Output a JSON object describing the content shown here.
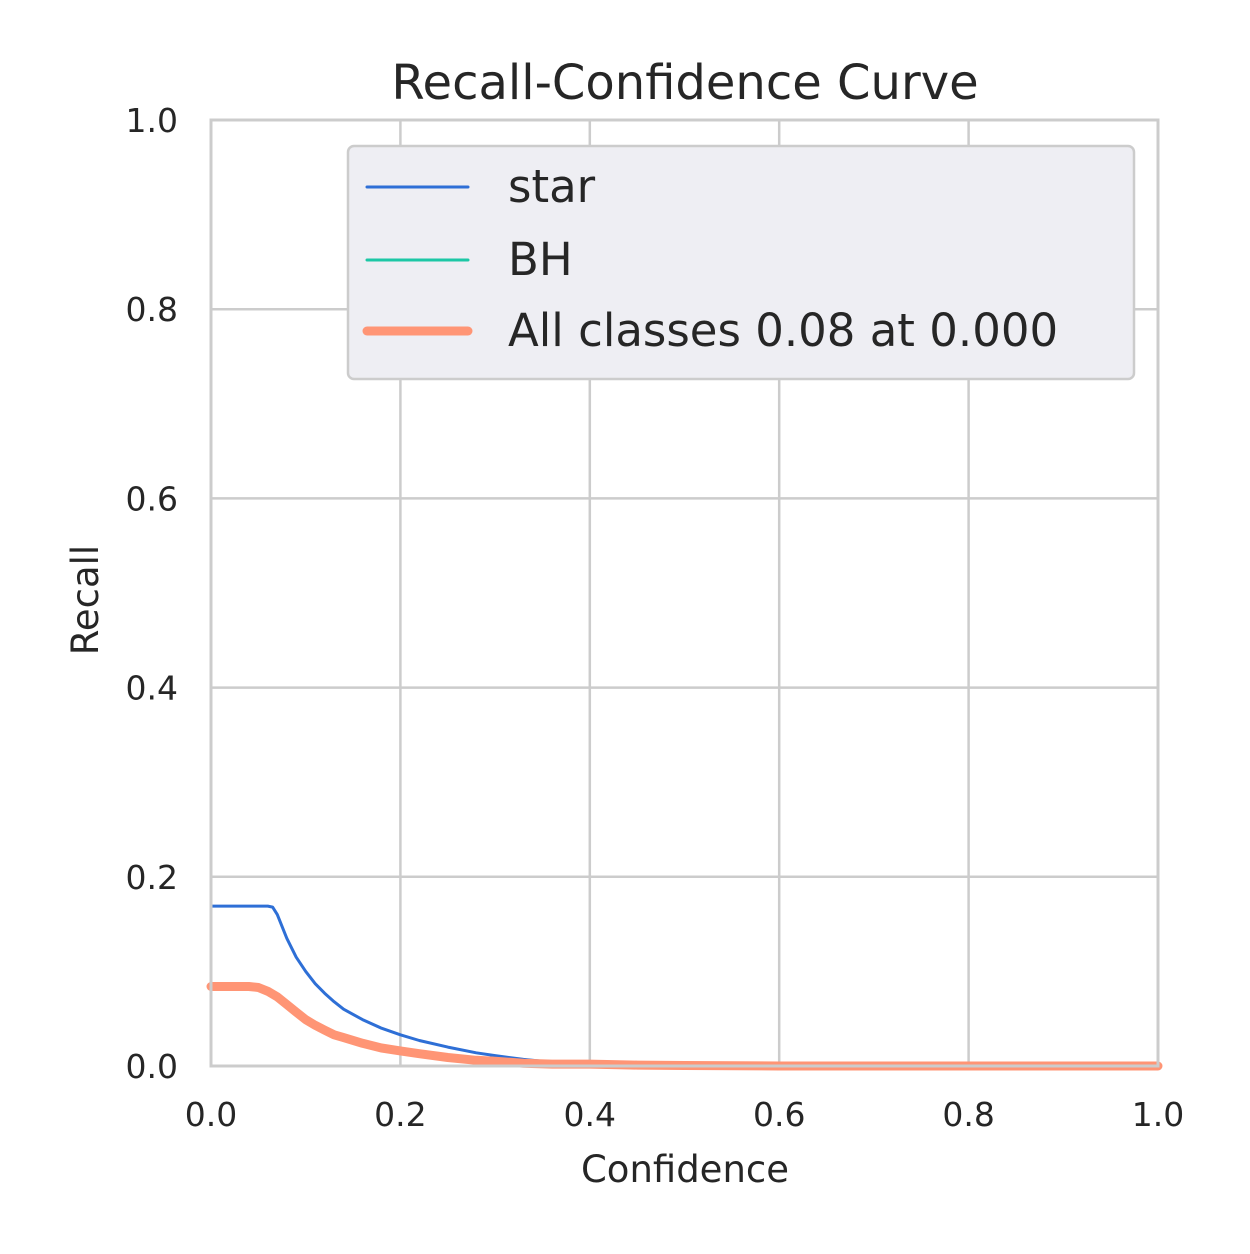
{
  "chart_data": {
    "type": "line",
    "title": "Recall-Confidence Curve",
    "xlabel": "Confidence",
    "ylabel": "Recall",
    "xlim": [
      0.0,
      1.0
    ],
    "ylim": [
      0.0,
      1.0
    ],
    "x_ticks": [
      "0.0",
      "0.2",
      "0.4",
      "0.6",
      "0.8",
      "1.0"
    ],
    "y_ticks": [
      "0.0",
      "0.2",
      "0.4",
      "0.6",
      "0.8",
      "1.0"
    ],
    "grid": true,
    "legend_position": "top-right",
    "series": [
      {
        "name": "star",
        "color": "#2e6fd6",
        "line_style": "thin",
        "x": [
          0.0,
          0.02,
          0.04,
          0.06,
          0.065,
          0.07,
          0.08,
          0.09,
          0.1,
          0.11,
          0.12,
          0.13,
          0.14,
          0.16,
          0.18,
          0.2,
          0.22,
          0.25,
          0.28,
          0.3,
          0.33,
          0.36,
          0.4,
          0.45,
          0.5,
          0.6,
          0.7,
          0.8,
          0.9,
          1.0
        ],
        "y": [
          0.169,
          0.169,
          0.169,
          0.169,
          0.168,
          0.16,
          0.135,
          0.115,
          0.1,
          0.087,
          0.077,
          0.068,
          0.06,
          0.049,
          0.04,
          0.033,
          0.027,
          0.02,
          0.014,
          0.011,
          0.007,
          0.004,
          0.003,
          0.002,
          0.001,
          0.0,
          0.0,
          0.0,
          0.0,
          0.0
        ]
      },
      {
        "name": "BH",
        "color": "#1cc7a5",
        "line_style": "thin",
        "x": [
          0.0,
          1.0
        ],
        "y": [
          0.0,
          0.0
        ]
      },
      {
        "name": "All classes 0.08 at 0.000",
        "color": "#ff9575",
        "line_style": "thick",
        "x": [
          0.0,
          0.02,
          0.04,
          0.05,
          0.06,
          0.07,
          0.08,
          0.09,
          0.1,
          0.11,
          0.12,
          0.13,
          0.14,
          0.16,
          0.18,
          0.2,
          0.22,
          0.25,
          0.28,
          0.3,
          0.33,
          0.36,
          0.4,
          0.45,
          0.5,
          0.6,
          0.7,
          0.8,
          0.9,
          1.0
        ],
        "y": [
          0.084,
          0.084,
          0.084,
          0.083,
          0.079,
          0.073,
          0.065,
          0.057,
          0.049,
          0.043,
          0.038,
          0.033,
          0.03,
          0.024,
          0.019,
          0.016,
          0.013,
          0.009,
          0.006,
          0.005,
          0.003,
          0.002,
          0.002,
          0.001,
          0.0005,
          0.0,
          0.0,
          0.0,
          0.0,
          0.0
        ]
      }
    ]
  },
  "styles": {
    "background": "#ffffff",
    "plot_background": "#ffffff",
    "grid_color": "#cccccc",
    "axis_color": "#cccccc",
    "text_color": "#262626",
    "legend_background": "#eeeef3",
    "legend_border": "#cccccc"
  }
}
